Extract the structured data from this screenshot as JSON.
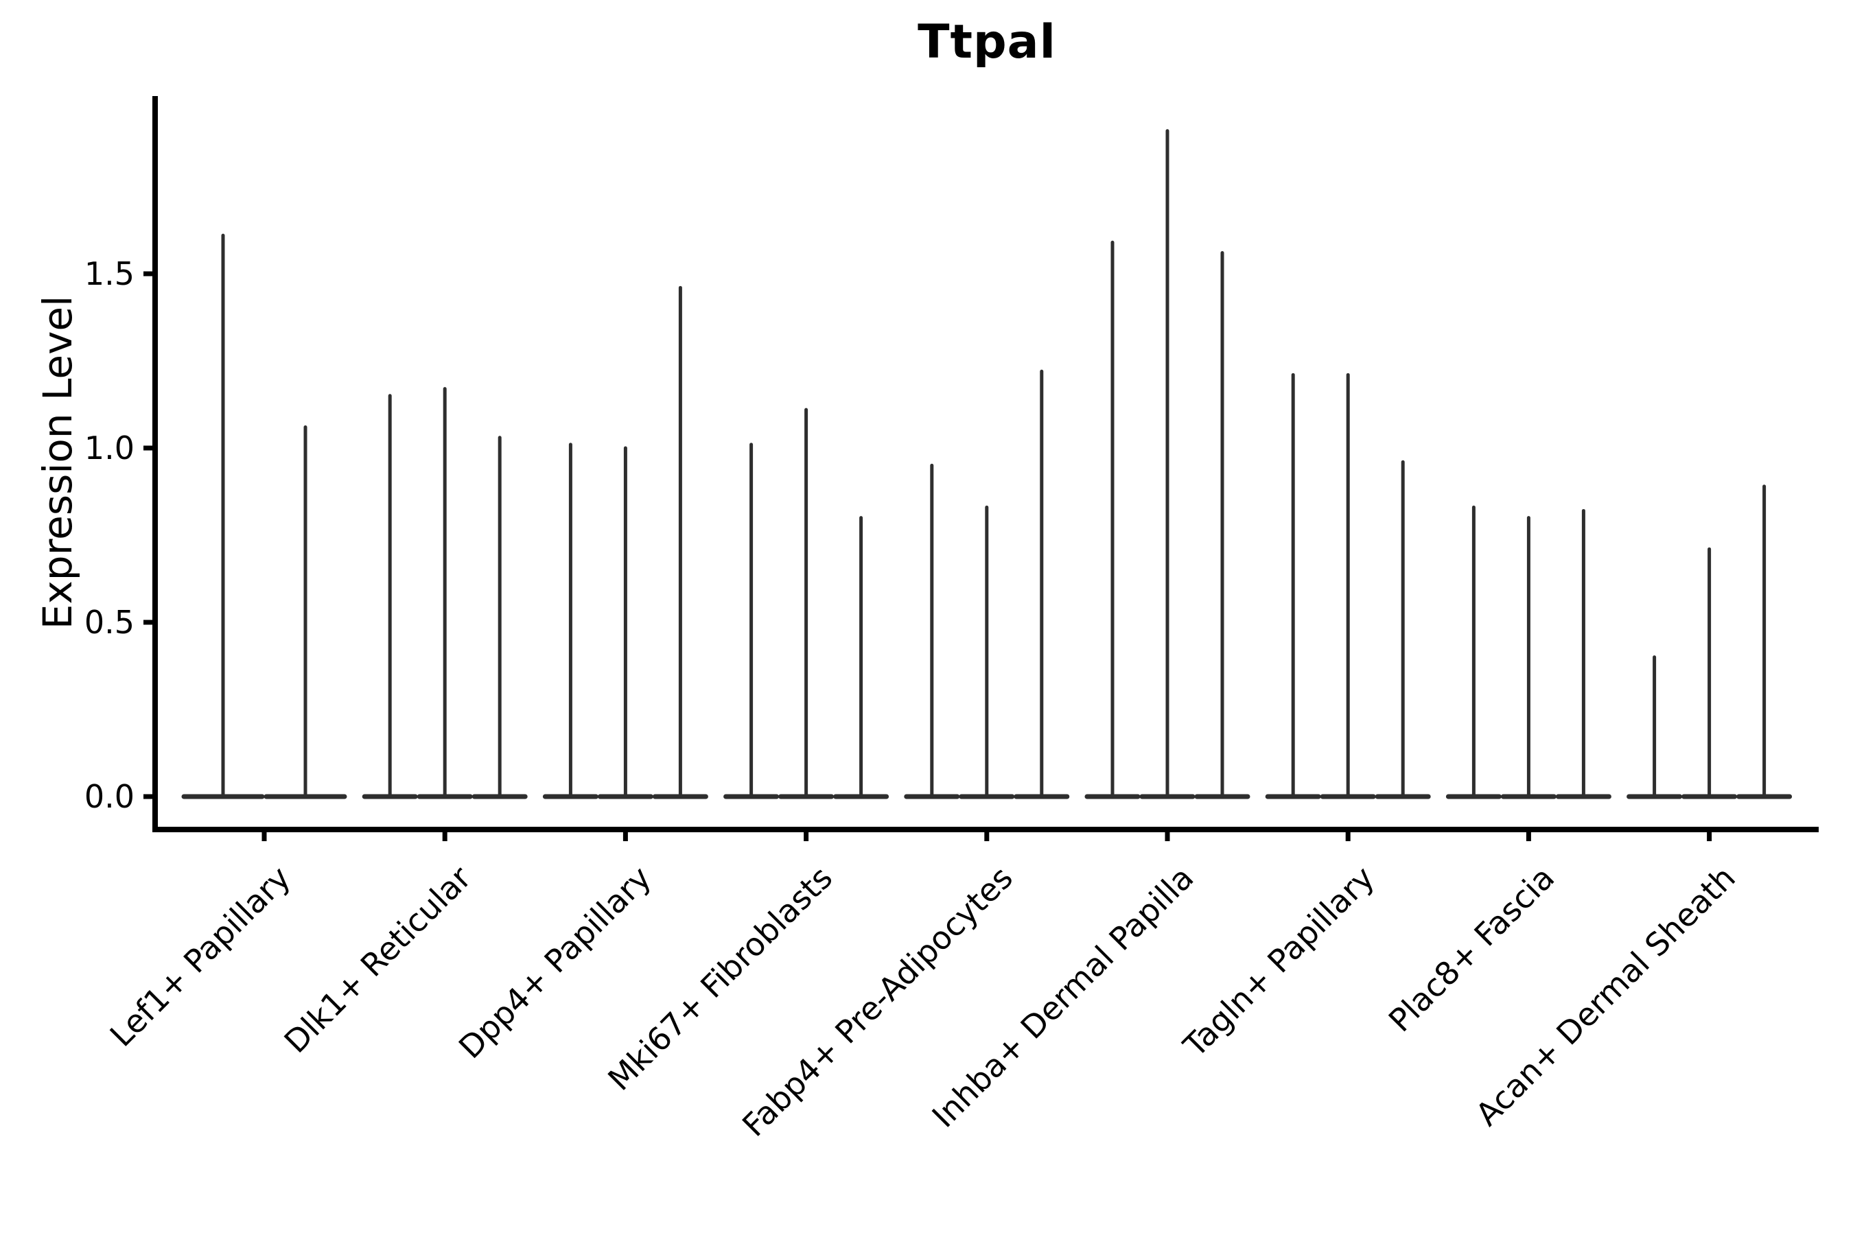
{
  "figure": {
    "background": "#ffffff"
  },
  "chart_data": {
    "type": "violin",
    "title": "Ttpal",
    "ylabel": "Expression Level",
    "xlabel": "",
    "grid": false,
    "legend": false,
    "ylim": [
      -0.1,
      2.01
    ],
    "yticks": [
      {
        "value": 0.0,
        "label": "0.0"
      },
      {
        "value": 0.5,
        "label": "0.5"
      },
      {
        "value": 1.0,
        "label": "1.0"
      },
      {
        "value": 1.5,
        "label": "1.5"
      }
    ],
    "colors": {
      "violin": "#2e2e2e",
      "axis": "#000000",
      "text": "#000000"
    },
    "note": "Each category shows thin collapsed violins (bulk of expression at 0); values below are the max expression reached by each violin spike, left to right.",
    "categories": [
      {
        "label": "Lef1+ Papillary",
        "violin_maxima": [
          1.61,
          1.06
        ]
      },
      {
        "label": "Dlk1+ Reticular",
        "violin_maxima": [
          1.15,
          1.17,
          1.03
        ]
      },
      {
        "label": "Dpp4+ Papillary",
        "violin_maxima": [
          1.01,
          1.0,
          1.46
        ]
      },
      {
        "label": "Mki67+ Fibroblasts",
        "violin_maxima": [
          1.01,
          1.11,
          0.8
        ]
      },
      {
        "label": "Fabp4+ Pre-Adipocytes",
        "violin_maxima": [
          0.95,
          0.83,
          1.22
        ]
      },
      {
        "label": "Inhba+ Dermal Papilla",
        "violin_maxima": [
          1.59,
          1.91,
          1.56
        ]
      },
      {
        "label": "Tagln+ Papillary",
        "violin_maxima": [
          1.21,
          1.21,
          0.96
        ]
      },
      {
        "label": "Plac8+ Fascia",
        "violin_maxima": [
          0.83,
          0.8,
          0.82
        ]
      },
      {
        "label": "Acan+ Dermal Sheath",
        "violin_maxima": [
          0.4,
          0.71,
          0.89
        ]
      }
    ]
  }
}
